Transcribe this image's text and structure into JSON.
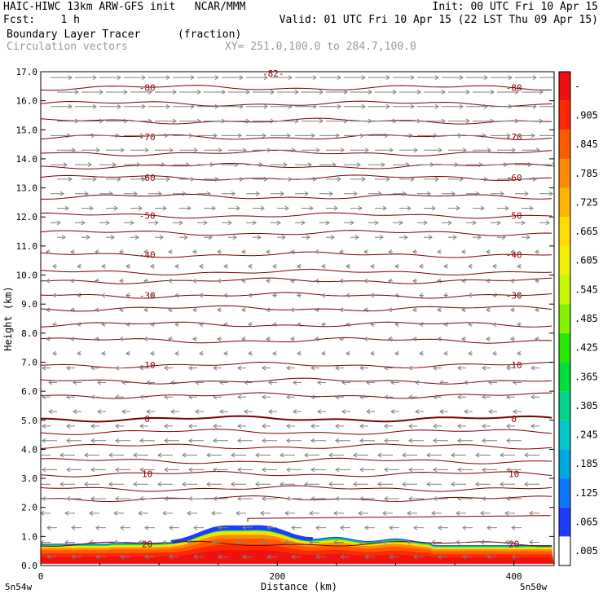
{
  "header": {
    "line1_left": "HAIC-HIWC 13km ARW-GFS init   NCAR/MMM",
    "line1_right": "Init: 00 UTC Fri 10 Apr 15",
    "line2_left": "Fcst:    1 h",
    "line2_right": "Valid: 01 UTC Fri 10 Apr 15 (22 LST Thu 09 Apr 15)",
    "line3_field": "Boundary Layer Tracer",
    "line3_units": "(fraction)",
    "line4_field": "Circulation vectors",
    "line4_xy": "XY= 251.0,100.0 to 284.7,100.0"
  },
  "axes": {
    "ylabel": "Height (km)",
    "xlabel": "Distance (km)",
    "left_corner": "5n54w",
    "right_corner": "5n50w",
    "top_label": "-82-"
  },
  "colors": {
    "contour": "#7a0000",
    "vector": "#808080"
  },
  "chart_data": {
    "type": "cross-section",
    "x": {
      "min": 0,
      "max": 434,
      "ticks": [
        0,
        200,
        400
      ],
      "units": "km"
    },
    "y": {
      "min": 0,
      "max": 17,
      "ticks": [
        "0.0",
        "1.0",
        "2.0",
        "3.0",
        "4.0",
        "5.0",
        "6.0",
        "7.0",
        "8.0",
        "9.0",
        "10.0",
        "11.0",
        "12.0",
        "13.0",
        "14.0",
        "15.0",
        "16.0",
        "17.0"
      ],
      "units": "km"
    },
    "temperature_contours": [
      {
        "label": "-80",
        "height": 16.45
      },
      {
        "label": "-70",
        "height": 14.75
      },
      {
        "label": "-60",
        "height": 13.35
      },
      {
        "label": "-50",
        "height": 12.05
      },
      {
        "label": "-40",
        "height": 10.7
      },
      {
        "label": "-30",
        "height": 9.3
      },
      {
        "label": "-10",
        "height": 6.9
      },
      {
        "label": "0",
        "height": 5.05
      },
      {
        "label": "10",
        "height": 3.15
      },
      {
        "label": "20",
        "height": 0.75
      }
    ],
    "unlabeled_contour_heights": [
      15.9,
      15.3,
      14.2,
      13.75,
      12.7,
      11.45,
      10.1,
      9.8,
      8.85,
      8.3,
      7.75,
      6.35,
      5.85,
      4.6,
      4.1,
      3.6,
      2.65,
      2.3
    ],
    "colorbar": {
      "labels": [
        ".005",
        ".065",
        ".125",
        ".185",
        ".245",
        ".305",
        ".365",
        ".425",
        ".485",
        ".545",
        ".605",
        ".665",
        ".725",
        ".785",
        ".845",
        ".905",
        "-"
      ],
      "colors": [
        "#ffffff",
        "#1e3cff",
        "#0a78ff",
        "#00a8e0",
        "#00c8c8",
        "#00d28c",
        "#00dc3c",
        "#28e600",
        "#82f000",
        "#c8f500",
        "#f0f000",
        "#ffdc00",
        "#ffb400",
        "#ff8c00",
        "#ff5a00",
        "#ff2800",
        "#f01010"
      ]
    },
    "tracer": {
      "description_values": "boundary layer fraction near 1.0 below ~0.6-1.0 km, max depth ~1.3 km near x=160-200 km"
    },
    "vectors": {
      "upper_direction": "east",
      "lower_direction": "west"
    }
  }
}
